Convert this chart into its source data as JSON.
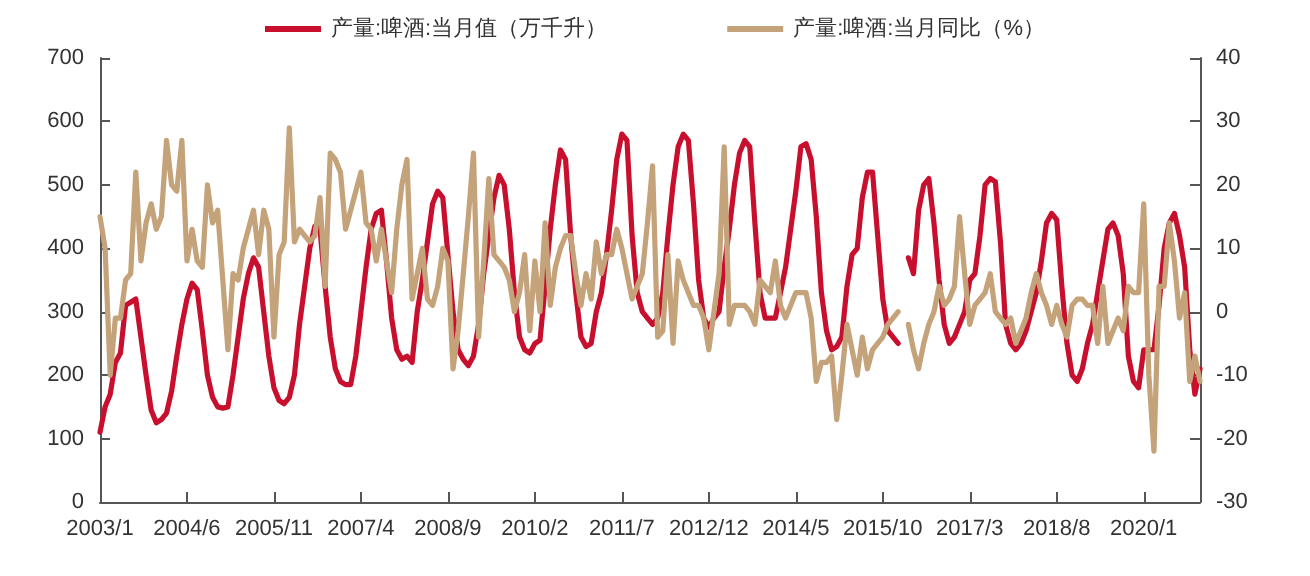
{
  "chart_data": {
    "type": "line",
    "categories": [
      "2003/1",
      null,
      null,
      null,
      null,
      null,
      null,
      null,
      null,
      null,
      null,
      null,
      null,
      null,
      null,
      null,
      null,
      "2004/6",
      null,
      null,
      null,
      null,
      null,
      null,
      null,
      null,
      null,
      null,
      null,
      null,
      null,
      null,
      null,
      null,
      "2005/11",
      null,
      null,
      null,
      null,
      null,
      null,
      null,
      null,
      null,
      null,
      null,
      null,
      null,
      null,
      null,
      null,
      "2007/4",
      null,
      null,
      null,
      null,
      null,
      null,
      null,
      null,
      null,
      null,
      null,
      null,
      null,
      null,
      null,
      null,
      "2008/9",
      null,
      null,
      null,
      null,
      null,
      null,
      null,
      null,
      null,
      null,
      null,
      null,
      null,
      null,
      null,
      null,
      "2010/2",
      null,
      null,
      null,
      null,
      null,
      null,
      null,
      null,
      null,
      null,
      null,
      null,
      null,
      null,
      null,
      null,
      "2011/7",
      null,
      null,
      null,
      null,
      null,
      null,
      null,
      null,
      null,
      null,
      null,
      null,
      null,
      null,
      null,
      null,
      "2012/12",
      null,
      null,
      null,
      null,
      null,
      null,
      null,
      null,
      null,
      null,
      null,
      null,
      null,
      null,
      null,
      null,
      "2014/5",
      null,
      null,
      null,
      null,
      null,
      null,
      null,
      null,
      null,
      null,
      null,
      null,
      null,
      null,
      null,
      null,
      "2015/10",
      null,
      null,
      null,
      null,
      null,
      null,
      null,
      null,
      null,
      null,
      null,
      null,
      null,
      null,
      null,
      null,
      "2017/3",
      null,
      null,
      null,
      null,
      null,
      null,
      null,
      null,
      null,
      null,
      null,
      null,
      null,
      null,
      null,
      null,
      "2018/8",
      null,
      null,
      null,
      null,
      null,
      null,
      null,
      null,
      null,
      null,
      null,
      null,
      null,
      null,
      null,
      null,
      "2020/1",
      null,
      null,
      null,
      null,
      null,
      null,
      null,
      null,
      null,
      null,
      null
    ],
    "series": [
      {
        "name": "产量:啤酒:当月值（万千升）",
        "color": "#c8102e",
        "values": [
          110,
          150,
          170,
          220,
          235,
          310,
          315,
          320,
          260,
          200,
          145,
          125,
          130,
          140,
          175,
          230,
          280,
          320,
          345,
          335,
          270,
          200,
          165,
          150,
          148,
          150,
          200,
          260,
          320,
          360,
          385,
          370,
          300,
          230,
          180,
          160,
          155,
          165,
          200,
          280,
          340,
          400,
          435,
          430,
          340,
          260,
          210,
          190,
          185,
          185,
          230,
          300,
          370,
          430,
          455,
          460,
          380,
          290,
          240,
          225,
          230,
          220,
          300,
          350,
          410,
          470,
          490,
          480,
          390,
          300,
          240,
          225,
          215,
          230,
          280,
          360,
          420,
          480,
          515,
          500,
          430,
          330,
          260,
          240,
          235,
          250,
          255,
          340,
          430,
          500,
          555,
          540,
          420,
          330,
          260,
          245,
          250,
          300,
          330,
          390,
          460,
          540,
          580,
          570,
          420,
          330,
          300,
          290,
          280,
          290,
          330,
          420,
          500,
          560,
          580,
          570,
          470,
          350,
          290,
          275,
          290,
          300,
          370,
          430,
          500,
          550,
          570,
          560,
          440,
          330,
          290,
          290,
          290,
          330,
          370,
          430,
          490,
          560,
          565,
          540,
          450,
          330,
          270,
          240,
          245,
          260,
          340,
          390,
          400,
          480,
          520,
          520,
          420,
          320,
          270,
          260,
          250,
          null,
          385,
          360,
          460,
          500,
          510,
          440,
          350,
          280,
          250,
          260,
          280,
          300,
          350,
          360,
          420,
          500,
          510,
          505,
          410,
          280,
          250,
          240,
          250,
          270,
          300,
          330,
          380,
          440,
          455,
          445,
          340,
          250,
          200,
          190,
          210,
          250,
          280,
          330,
          380,
          430,
          440,
          420,
          360,
          230,
          190,
          180,
          240,
          240,
          240,
          310,
          400,
          440,
          455,
          420,
          370,
          240,
          170,
          210
        ]
      },
      {
        "name": "产量:啤酒:当月同比（%）",
        "color": "#c4a27a",
        "axis": "y2",
        "values": [
          15,
          10,
          -10,
          -1,
          -1,
          5,
          6,
          22,
          8,
          14,
          17,
          13,
          15,
          27,
          20,
          19,
          27,
          8,
          13,
          8,
          7,
          20,
          14,
          16,
          5,
          -6,
          6,
          5,
          10,
          13,
          16,
          9,
          16,
          13,
          -4,
          9,
          11,
          29,
          11,
          13,
          12,
          11,
          12,
          18,
          4,
          25,
          24,
          22,
          13,
          16,
          19,
          22,
          14,
          13,
          8,
          13,
          8,
          3,
          13,
          20,
          24,
          2,
          6,
          10,
          2,
          1,
          4,
          10,
          8,
          -9,
          -3,
          6,
          15,
          25,
          -4,
          8,
          21,
          9,
          8,
          7,
          5,
          0,
          3,
          9,
          -3,
          8,
          0,
          14,
          1,
          7,
          10,
          12,
          12,
          6,
          1,
          6,
          2,
          11,
          6,
          9,
          9,
          13,
          10,
          6,
          2,
          4,
          6,
          14,
          23,
          -4,
          -3,
          9,
          -5,
          8,
          5,
          3,
          1,
          1,
          -1,
          -6,
          0,
          6,
          26,
          -2,
          1,
          1,
          1,
          0,
          -2,
          5,
          4,
          3,
          8,
          1,
          -1,
          1,
          3,
          3,
          3,
          -1,
          -11,
          -8,
          -8,
          -7,
          -17,
          -10,
          -2,
          -6,
          -10,
          -4,
          -9,
          -6,
          -5,
          -4,
          -2,
          -1,
          0,
          null,
          -2,
          -6,
          -9,
          -5,
          -2,
          0,
          4,
          1,
          2,
          4,
          15,
          6,
          -2,
          1,
          2,
          3,
          6,
          0,
          -1,
          -2,
          -1,
          -5,
          -3,
          -1,
          3,
          6,
          3,
          1,
          -2,
          1,
          -2,
          -4,
          1,
          2,
          2,
          1,
          1,
          -5,
          4,
          -5,
          -3,
          -1,
          -3,
          4,
          3,
          3,
          17,
          -10,
          -22,
          4,
          4,
          14,
          8,
          -1,
          3,
          -11,
          -7,
          -11
        ]
      }
    ],
    "ylim": [
      0,
      700
    ],
    "yticks": [
      0,
      100,
      200,
      300,
      400,
      500,
      600,
      700
    ],
    "y2lim": [
      -30,
      40
    ],
    "y2ticks": [
      -30,
      -20,
      -10,
      0,
      10,
      20,
      30,
      40
    ],
    "legend": "top",
    "grid": false,
    "marker": "none",
    "line_style": "solid"
  }
}
